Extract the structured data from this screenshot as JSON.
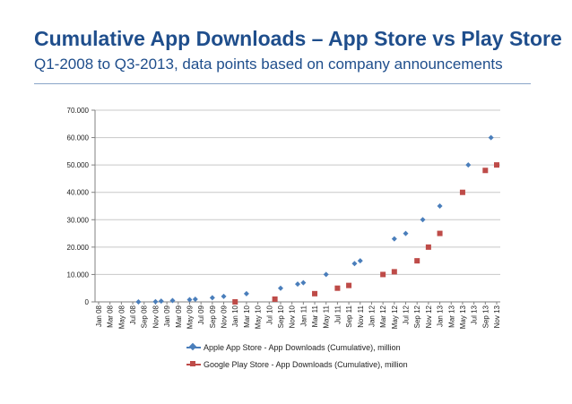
{
  "slide": {
    "title": "Cumulative App Downloads – App Store vs Play Store",
    "subtitle": "Q1-2008 to Q3-2013, data points based on company announcements"
  },
  "chart_data": {
    "type": "scatter",
    "title": "",
    "xlabel": "",
    "ylabel": "",
    "ylim": [
      0,
      70000
    ],
    "yticks": [
      0,
      10000,
      20000,
      30000,
      40000,
      50000,
      60000,
      70000
    ],
    "ytick_labels": [
      "0",
      "10.000",
      "20.000",
      "30.000",
      "40.000",
      "50.000",
      "60.000",
      "70.000"
    ],
    "xtick_labels": [
      "Jan 08",
      "Mar 08",
      "May 08",
      "Jul 08",
      "Sep 08",
      "Nov 08",
      "Jan 09",
      "Mar 09",
      "May 09",
      "Jul 09",
      "Sep 09",
      "Nov 09",
      "Jan 10",
      "Mar 10",
      "May 10",
      "Jul 10",
      "Sep 10",
      "Nov 10",
      "Jan 11",
      "Mar 11",
      "May 11",
      "Jul 11",
      "Sep 11",
      "Nov 11",
      "Jan 12",
      "Mar 12",
      "May 12",
      "Jul 12",
      "Sep 12",
      "Nov 12",
      "Jan 13",
      "Mar 13",
      "May 13",
      "Jul 13",
      "Sep 13",
      "Nov 13"
    ],
    "x_unit": "months since Jan 2008",
    "xlim": [
      0,
      70
    ],
    "grid": true,
    "legend_position": "bottom",
    "series": [
      {
        "name": "Apple App Store - App Downloads (Cumulative), million",
        "color": "#4a7ebb",
        "marker": "diamond",
        "points": [
          {
            "x": 7,
            "y": 0
          },
          {
            "x": 10,
            "y": 100
          },
          {
            "x": 11,
            "y": 300
          },
          {
            "x": 13,
            "y": 500
          },
          {
            "x": 16,
            "y": 800
          },
          {
            "x": 17,
            "y": 1000
          },
          {
            "x": 20,
            "y": 1500
          },
          {
            "x": 22,
            "y": 2000
          },
          {
            "x": 26,
            "y": 3000
          },
          {
            "x": 32,
            "y": 5000
          },
          {
            "x": 35,
            "y": 6500
          },
          {
            "x": 36,
            "y": 7000
          },
          {
            "x": 40,
            "y": 10000
          },
          {
            "x": 45,
            "y": 14000
          },
          {
            "x": 46,
            "y": 15000
          },
          {
            "x": 52,
            "y": 23000
          },
          {
            "x": 54,
            "y": 25000
          },
          {
            "x": 57,
            "y": 30000
          },
          {
            "x": 60,
            "y": 35000
          },
          {
            "x": 65,
            "y": 50000
          },
          {
            "x": 69,
            "y": 60000
          }
        ]
      },
      {
        "name": "Google Play Store - App Downloads (Cumulative), million",
        "color": "#be4b48",
        "marker": "square",
        "points": [
          {
            "x": 24,
            "y": 0
          },
          {
            "x": 31,
            "y": 1000
          },
          {
            "x": 38,
            "y": 3000
          },
          {
            "x": 42,
            "y": 5000
          },
          {
            "x": 44,
            "y": 6000
          },
          {
            "x": 50,
            "y": 10000
          },
          {
            "x": 52,
            "y": 11000
          },
          {
            "x": 56,
            "y": 15000
          },
          {
            "x": 58,
            "y": 20000
          },
          {
            "x": 60,
            "y": 25000
          },
          {
            "x": 64,
            "y": 40000
          },
          {
            "x": 68,
            "y": 48000
          },
          {
            "x": 70,
            "y": 50000
          }
        ]
      }
    ]
  }
}
